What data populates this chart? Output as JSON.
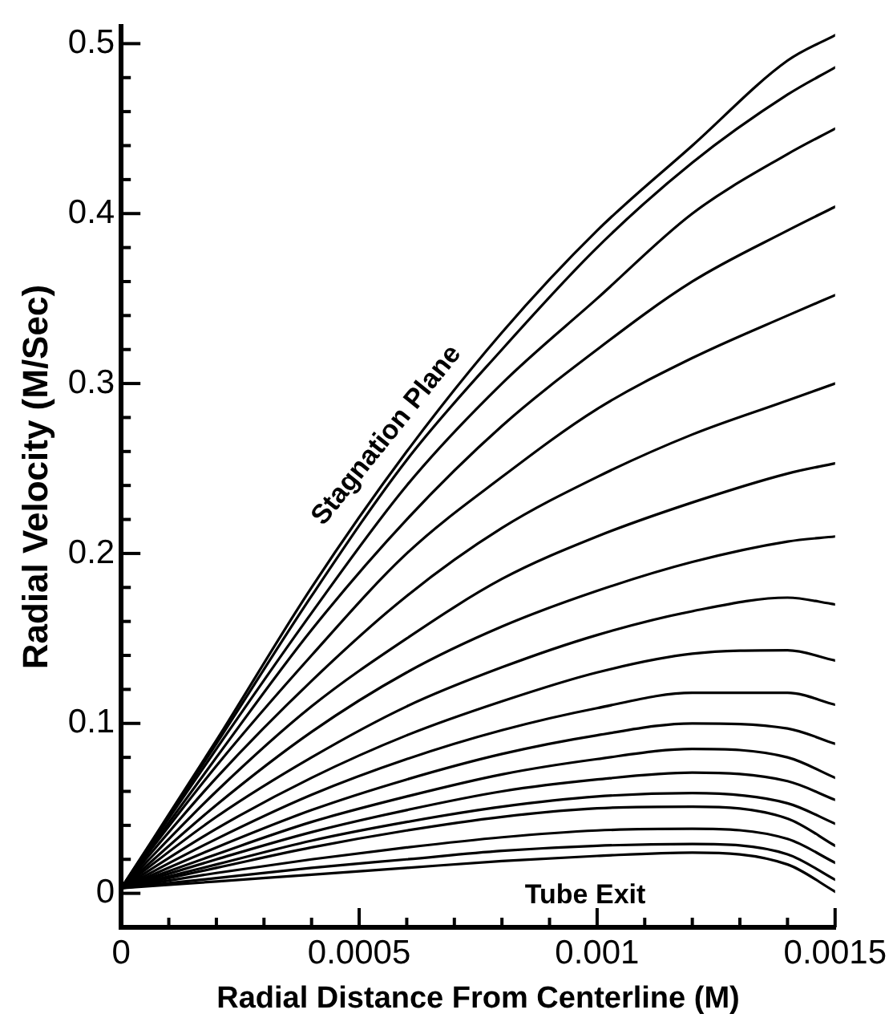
{
  "chart_data": {
    "type": "line",
    "xlabel": "Radial Distance From Centerline (M)",
    "ylabel": "Radial Velocity (M/Sec)",
    "x": [
      0,
      0.0002,
      0.0004,
      0.0006,
      0.0008,
      0.001,
      0.0012,
      0.0014,
      0.0015
    ],
    "xlim": [
      0,
      0.0015
    ],
    "ylim": [
      -0.02,
      0.51
    ],
    "xticks": [
      0,
      {
        "value": 0.0001,
        "label": null
      },
      {
        "value": 0.0002,
        "label": null
      },
      {
        "value": 0.0003,
        "label": null
      },
      {
        "value": 0.0004,
        "label": null
      },
      0.0005,
      {
        "value": 0.0006,
        "label": null
      },
      {
        "value": 0.0007,
        "label": null
      },
      {
        "value": 0.0008,
        "label": null
      },
      {
        "value": 0.0009,
        "label": null
      },
      0.001,
      {
        "value": 0.0011,
        "label": null
      },
      {
        "value": 0.0012,
        "label": null
      },
      {
        "value": 0.0013,
        "label": null
      },
      {
        "value": 0.0014,
        "label": null
      },
      0.0015
    ],
    "yticks": [
      0,
      {
        "value": 0.02,
        "label": null
      },
      {
        "value": 0.04,
        "label": null
      },
      {
        "value": 0.06,
        "label": null
      },
      {
        "value": 0.08,
        "label": null
      },
      0.1,
      {
        "value": 0.12,
        "label": null
      },
      {
        "value": 0.14,
        "label": null
      },
      {
        "value": 0.16,
        "label": null
      },
      {
        "value": 0.18,
        "label": null
      },
      0.2,
      {
        "value": 0.22,
        "label": null
      },
      {
        "value": 0.24,
        "label": null
      },
      {
        "value": 0.26,
        "label": null
      },
      {
        "value": 0.28,
        "label": null
      },
      0.3,
      {
        "value": 0.32,
        "label": null
      },
      {
        "value": 0.34,
        "label": null
      },
      {
        "value": 0.36,
        "label": null
      },
      {
        "value": 0.38,
        "label": null
      },
      0.4,
      {
        "value": 0.42,
        "label": null
      },
      {
        "value": 0.44,
        "label": null
      },
      {
        "value": 0.46,
        "label": null
      },
      {
        "value": 0.48,
        "label": null
      },
      0.5
    ],
    "grid": false,
    "legend": false,
    "marker": "none",
    "line_style": "solid",
    "annotations": [
      "Stagnation Plane",
      "Tube Exit"
    ],
    "series": [
      {
        "color": "#000000",
        "values": [
          0.003,
          0.09,
          0.18,
          0.26,
          0.33,
          0.39,
          0.44,
          0.49,
          0.505
        ]
      },
      {
        "color": "#000000",
        "values": [
          0.003,
          0.088,
          0.175,
          0.255,
          0.32,
          0.38,
          0.43,
          0.47,
          0.486
        ]
      },
      {
        "color": "#000000",
        "values": [
          0.003,
          0.085,
          0.165,
          0.24,
          0.3,
          0.35,
          0.4,
          0.435,
          0.45
        ]
      },
      {
        "color": "#000000",
        "values": [
          0.003,
          0.08,
          0.155,
          0.22,
          0.275,
          0.32,
          0.36,
          0.39,
          0.404
        ]
      },
      {
        "color": "#000000",
        "values": [
          0.003,
          0.075,
          0.14,
          0.2,
          0.245,
          0.285,
          0.315,
          0.34,
          0.352
        ]
      },
      {
        "color": "#000000",
        "values": [
          0.003,
          0.068,
          0.125,
          0.175,
          0.215,
          0.245,
          0.27,
          0.29,
          0.3
        ]
      },
      {
        "color": "#000000",
        "values": [
          0.003,
          0.06,
          0.11,
          0.15,
          0.185,
          0.21,
          0.23,
          0.247,
          0.253
        ]
      },
      {
        "color": "#000000",
        "values": [
          0.003,
          0.052,
          0.095,
          0.13,
          0.157,
          0.178,
          0.195,
          0.207,
          0.21
        ]
      },
      {
        "color": "#000000",
        "values": [
          0.003,
          0.045,
          0.08,
          0.11,
          0.133,
          0.152,
          0.166,
          0.174,
          0.17
        ]
      },
      {
        "color": "#000000",
        "values": [
          0.003,
          0.038,
          0.068,
          0.093,
          0.113,
          0.13,
          0.141,
          0.143,
          0.137
        ]
      },
      {
        "color": "#000000",
        "values": [
          0.003,
          0.032,
          0.058,
          0.079,
          0.096,
          0.109,
          0.118,
          0.118,
          0.111
        ]
      },
      {
        "color": "#000000",
        "values": [
          0.003,
          0.027,
          0.049,
          0.067,
          0.082,
          0.093,
          0.1,
          0.097,
          0.088
        ]
      },
      {
        "color": "#000000",
        "values": [
          0.003,
          0.023,
          0.042,
          0.057,
          0.07,
          0.079,
          0.085,
          0.08,
          0.068
        ]
      },
      {
        "color": "#000000",
        "values": [
          0.003,
          0.02,
          0.036,
          0.049,
          0.06,
          0.067,
          0.071,
          0.066,
          0.055
        ]
      },
      {
        "color": "#000000",
        "values": [
          0.003,
          0.017,
          0.031,
          0.042,
          0.051,
          0.057,
          0.059,
          0.053,
          0.041
        ]
      },
      {
        "color": "#000000",
        "values": [
          0.003,
          0.015,
          0.027,
          0.037,
          0.045,
          0.05,
          0.051,
          0.044,
          0.028
        ]
      },
      {
        "color": "#000000",
        "values": [
          0.003,
          0.012,
          0.02,
          0.027,
          0.033,
          0.037,
          0.038,
          0.032,
          0.018
        ]
      },
      {
        "color": "#000000",
        "values": [
          0.003,
          0.009,
          0.015,
          0.02,
          0.025,
          0.028,
          0.029,
          0.023,
          0.008
        ]
      },
      {
        "color": "#000000",
        "values": [
          0.003,
          0.007,
          0.011,
          0.015,
          0.019,
          0.022,
          0.024,
          0.017,
          0.001
        ]
      }
    ]
  }
}
